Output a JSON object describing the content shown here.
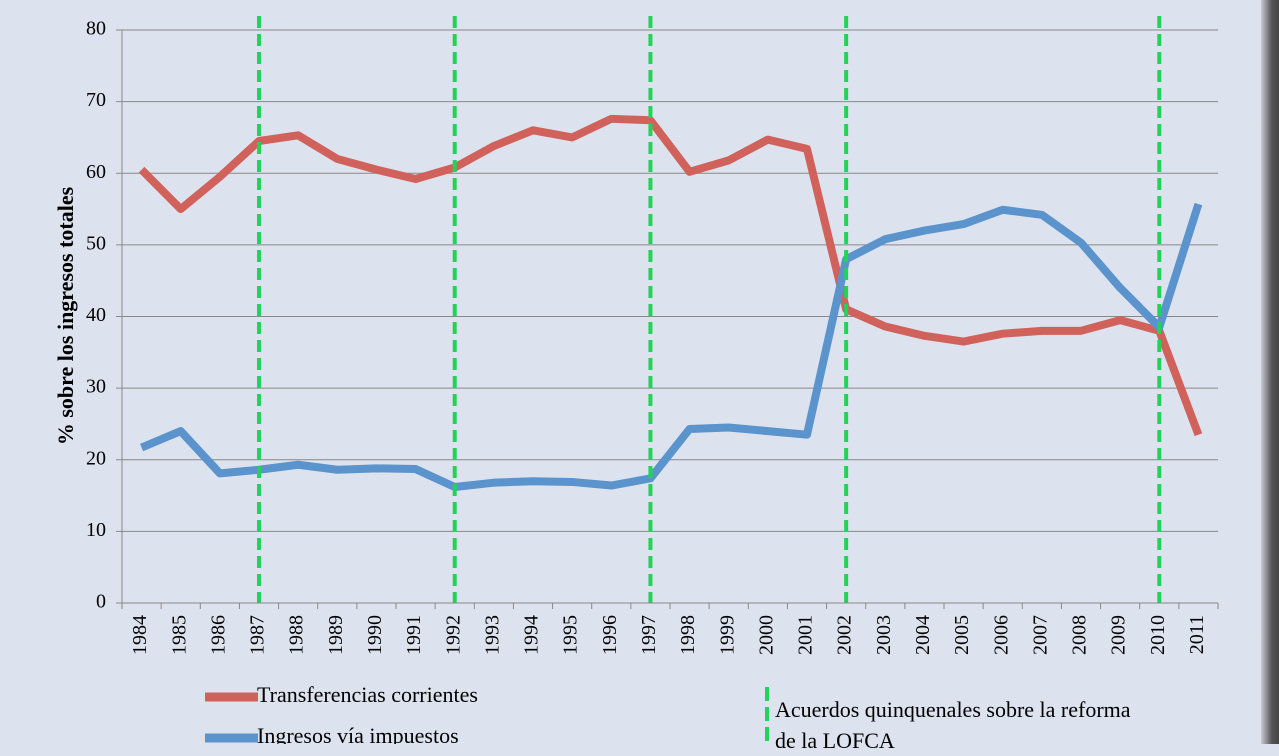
{
  "chart_data": {
    "type": "line",
    "y_label": "% sobre los ingresos totales",
    "categories": [
      "1984",
      "1985",
      "1986",
      "1987",
      "1988",
      "1989",
      "1990",
      "1991",
      "1992",
      "1993",
      "1994",
      "1995",
      "1996",
      "1997",
      "1998",
      "1999",
      "2000",
      "2001",
      "2002",
      "2003",
      "2004",
      "2005",
      "2006",
      "2007",
      "2008",
      "2009",
      "2010",
      "2011"
    ],
    "series": [
      {
        "name": "Transferencias corrientes",
        "color": "#d0625b",
        "values": [
          60.5,
          55,
          59.5,
          64.5,
          65.3,
          62,
          60.5,
          59.2,
          60.8,
          63.8,
          66,
          65,
          67.6,
          67.4,
          60.2,
          61.8,
          64.7,
          63.4,
          41,
          38.6,
          37.3,
          36.5,
          37.6,
          38,
          38,
          39.5,
          38,
          23.5
        ]
      },
      {
        "name": "Ingresos vía impuestos",
        "color": "#5b93cc",
        "values": [
          21.7,
          24,
          18.1,
          18.6,
          19.3,
          18.6,
          18.8,
          18.7,
          16.2,
          16.8,
          17,
          16.9,
          16.4,
          17.4,
          24.3,
          24.5,
          24,
          23.5,
          48,
          50.8,
          52,
          52.9,
          54.9,
          54.2,
          50.3,
          44,
          38.5,
          55.7
        ]
      }
    ],
    "vlines": {
      "name": "Acuerdos quinquenales sobre la reforma de la LOFCA",
      "color": "#22d35a",
      "categories": [
        "1987",
        "1992",
        "1997",
        "2002",
        "2010"
      ]
    },
    "ylim": [
      0,
      80
    ],
    "yticks": [
      0,
      10,
      20,
      30,
      40,
      50,
      60,
      70,
      80
    ],
    "grid": true
  }
}
